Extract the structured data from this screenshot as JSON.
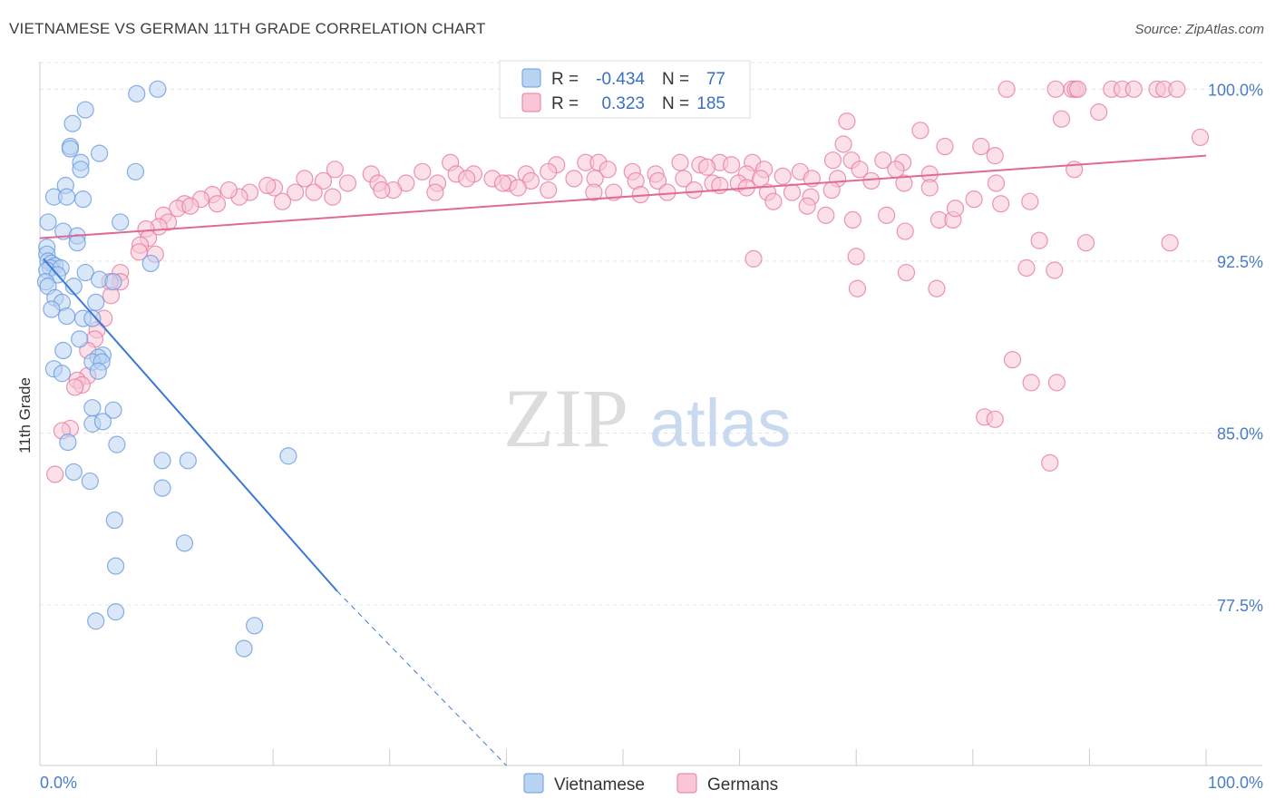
{
  "header": {
    "title": "VIETNAMESE VS GERMAN 11TH GRADE CORRELATION CHART",
    "source": "Source: ZipAtlas.com"
  },
  "watermark": {
    "zip": "ZIP",
    "atlas": "atlas"
  },
  "legend_box": {
    "rows": [
      {
        "r_label": "R =",
        "r_value": "-0.434",
        "n_label": "N =",
        "n_value": "77",
        "color": "#a9c8f0"
      },
      {
        "r_label": "R =",
        "r_value": "0.323",
        "n_label": "N =",
        "n_value": "185",
        "color": "#f5b8cc"
      }
    ]
  },
  "chart_data": {
    "type": "scatter",
    "title": "VIETNAMESE VS GERMAN 11TH GRADE CORRELATION CHART",
    "xlabel": "",
    "ylabel": "11th Grade",
    "xlim": [
      0,
      100
    ],
    "ylim": [
      70.5,
      101.2
    ],
    "x_tick_labels": [
      "0.0%",
      "100.0%"
    ],
    "y_ticks": [
      77.5,
      85.0,
      92.5,
      100.0
    ],
    "y_tick_labels": [
      "77.5%",
      "85.0%",
      "92.5%",
      "100.0%"
    ],
    "grid": true,
    "legend_position": "bottom-center",
    "series": [
      {
        "name": "Vietnamese",
        "color": "#6a9be0",
        "fill": "#b9d3f3",
        "r": -0.434,
        "n": 77,
        "trend": {
          "x0": 0.3,
          "y0": 92.6,
          "x1": 25.5,
          "y1": 78.1,
          "dash_to_x": 40,
          "dash_to_y": 70.5
        },
        "points": [
          [
            10.1,
            100.0
          ],
          [
            8.3,
            99.8
          ],
          [
            3.9,
            99.1
          ],
          [
            2.8,
            98.5
          ],
          [
            2.6,
            97.5
          ],
          [
            2.6,
            97.4
          ],
          [
            5.1,
            97.2
          ],
          [
            3.5,
            96.8
          ],
          [
            3.5,
            96.5
          ],
          [
            8.2,
            96.4
          ],
          [
            2.2,
            95.8
          ],
          [
            1.2,
            95.3
          ],
          [
            2.3,
            95.3
          ],
          [
            3.7,
            95.2
          ],
          [
            0.7,
            94.2
          ],
          [
            6.9,
            94.2
          ],
          [
            2.0,
            93.8
          ],
          [
            3.2,
            93.6
          ],
          [
            3.2,
            93.3
          ],
          [
            0.6,
            93.1
          ],
          [
            0.6,
            92.8
          ],
          [
            0.7,
            92.5
          ],
          [
            1.0,
            92.4
          ],
          [
            1.3,
            92.3
          ],
          [
            0.9,
            92.2
          ],
          [
            9.5,
            92.4
          ],
          [
            0.6,
            92.1
          ],
          [
            1.8,
            92.2
          ],
          [
            1.5,
            91.9
          ],
          [
            3.9,
            92.0
          ],
          [
            0.5,
            91.6
          ],
          [
            0.7,
            91.4
          ],
          [
            2.9,
            91.4
          ],
          [
            5.1,
            91.7
          ],
          [
            6.3,
            91.6
          ],
          [
            1.3,
            90.9
          ],
          [
            1.9,
            90.7
          ],
          [
            4.8,
            90.7
          ],
          [
            1.0,
            90.4
          ],
          [
            2.3,
            90.1
          ],
          [
            3.7,
            90.0
          ],
          [
            4.5,
            90.0
          ],
          [
            3.4,
            89.1
          ],
          [
            2.0,
            88.6
          ],
          [
            5.4,
            88.4
          ],
          [
            5.0,
            88.3
          ],
          [
            4.5,
            88.1
          ],
          [
            5.3,
            88.1
          ],
          [
            1.2,
            87.8
          ],
          [
            1.9,
            87.6
          ],
          [
            5.0,
            87.7
          ],
          [
            4.5,
            86.1
          ],
          [
            6.3,
            86.0
          ],
          [
            4.5,
            85.4
          ],
          [
            5.4,
            85.5
          ],
          [
            2.4,
            84.6
          ],
          [
            6.6,
            84.5
          ],
          [
            10.5,
            83.8
          ],
          [
            12.7,
            83.8
          ],
          [
            21.3,
            84.0
          ],
          [
            2.9,
            83.3
          ],
          [
            4.3,
            82.9
          ],
          [
            10.5,
            82.6
          ],
          [
            6.4,
            81.2
          ],
          [
            12.4,
            80.2
          ],
          [
            6.5,
            79.2
          ],
          [
            6.5,
            77.2
          ],
          [
            4.8,
            76.8
          ],
          [
            18.4,
            76.6
          ],
          [
            17.5,
            75.6
          ]
        ]
      },
      {
        "name": "Germans",
        "color": "#e87aa0",
        "fill": "#f8c6d6",
        "r": 0.323,
        "n": 185,
        "trend": {
          "x0": 0,
          "y0": 93.5,
          "x1": 100,
          "y1": 97.1
        },
        "points": [
          [
            82.9,
            100.0
          ],
          [
            87.1,
            100.0
          ],
          [
            88.5,
            100.0
          ],
          [
            88.8,
            100.0
          ],
          [
            89.0,
            100.0
          ],
          [
            91.9,
            100.0
          ],
          [
            92.8,
            100.0
          ],
          [
            93.8,
            100.0
          ],
          [
            95.8,
            100.0
          ],
          [
            96.4,
            100.0
          ],
          [
            97.5,
            100.0
          ],
          [
            90.8,
            99.0
          ],
          [
            87.6,
            98.7
          ],
          [
            69.2,
            98.6
          ],
          [
            75.5,
            98.2
          ],
          [
            99.5,
            97.9
          ],
          [
            68.9,
            97.6
          ],
          [
            77.6,
            97.5
          ],
          [
            80.7,
            97.5
          ],
          [
            81.9,
            97.1
          ],
          [
            68.0,
            96.9
          ],
          [
            69.6,
            96.9
          ],
          [
            72.3,
            96.9
          ],
          [
            74.0,
            96.8
          ],
          [
            58.3,
            96.8
          ],
          [
            61.1,
            96.8
          ],
          [
            44.3,
            96.7
          ],
          [
            46.8,
            96.8
          ],
          [
            47.9,
            96.8
          ],
          [
            54.9,
            96.8
          ],
          [
            56.6,
            96.7
          ],
          [
            59.3,
            96.7
          ],
          [
            35.2,
            96.8
          ],
          [
            25.3,
            96.5
          ],
          [
            28.4,
            96.3
          ],
          [
            32.8,
            96.4
          ],
          [
            35.7,
            96.3
          ],
          [
            37.2,
            96.3
          ],
          [
            41.7,
            96.3
          ],
          [
            43.6,
            96.4
          ],
          [
            48.7,
            96.5
          ],
          [
            50.8,
            96.4
          ],
          [
            52.8,
            96.3
          ],
          [
            57.2,
            96.6
          ],
          [
            60.6,
            96.3
          ],
          [
            62.1,
            96.5
          ],
          [
            65.2,
            96.4
          ],
          [
            70.3,
            96.5
          ],
          [
            73.4,
            96.5
          ],
          [
            76.3,
            96.3
          ],
          [
            88.7,
            96.5
          ],
          [
            22.7,
            96.1
          ],
          [
            24.3,
            96.0
          ],
          [
            26.4,
            95.9
          ],
          [
            29.0,
            95.9
          ],
          [
            31.4,
            95.9
          ],
          [
            34.1,
            95.9
          ],
          [
            36.6,
            96.1
          ],
          [
            38.8,
            96.1
          ],
          [
            40.2,
            95.9
          ],
          [
            42.1,
            96.0
          ],
          [
            45.8,
            96.1
          ],
          [
            47.6,
            96.1
          ],
          [
            51.1,
            96.0
          ],
          [
            53.0,
            96.0
          ],
          [
            55.2,
            96.1
          ],
          [
            57.7,
            95.9
          ],
          [
            59.9,
            95.9
          ],
          [
            61.8,
            96.1
          ],
          [
            63.7,
            96.2
          ],
          [
            66.2,
            96.1
          ],
          [
            68.4,
            96.1
          ],
          [
            71.3,
            96.0
          ],
          [
            74.1,
            95.9
          ],
          [
            76.3,
            95.7
          ],
          [
            20.1,
            95.7
          ],
          [
            21.9,
            95.5
          ],
          [
            23.5,
            95.5
          ],
          [
            19.5,
            95.8
          ],
          [
            30.3,
            95.6
          ],
          [
            33.9,
            95.5
          ],
          [
            39.7,
            95.9
          ],
          [
            41.0,
            95.7
          ],
          [
            43.6,
            95.6
          ],
          [
            47.5,
            95.5
          ],
          [
            49.2,
            95.5
          ],
          [
            51.5,
            95.4
          ],
          [
            53.8,
            95.5
          ],
          [
            56.1,
            95.6
          ],
          [
            58.3,
            95.8
          ],
          [
            60.6,
            95.7
          ],
          [
            62.4,
            95.5
          ],
          [
            64.5,
            95.5
          ],
          [
            66.1,
            95.3
          ],
          [
            67.9,
            95.6
          ],
          [
            18.0,
            95.5
          ],
          [
            17.1,
            95.3
          ],
          [
            16.2,
            95.6
          ],
          [
            14.8,
            95.4
          ],
          [
            13.8,
            95.2
          ],
          [
            15.2,
            95.0
          ],
          [
            12.4,
            95.0
          ],
          [
            11.8,
            94.8
          ],
          [
            12.9,
            94.9
          ],
          [
            10.6,
            94.5
          ],
          [
            11.0,
            94.2
          ],
          [
            10.2,
            94.0
          ],
          [
            9.1,
            93.9
          ],
          [
            9.3,
            93.5
          ],
          [
            8.6,
            93.2
          ],
          [
            9.9,
            92.8
          ],
          [
            8.5,
            92.9
          ],
          [
            6.9,
            92.0
          ],
          [
            6.9,
            91.6
          ],
          [
            6.0,
            91.6
          ],
          [
            6.1,
            91.0
          ],
          [
            5.5,
            90.0
          ],
          [
            4.9,
            89.5
          ],
          [
            4.7,
            89.1
          ],
          [
            4.1,
            88.6
          ],
          [
            4.1,
            87.5
          ],
          [
            3.2,
            87.3
          ],
          [
            3.6,
            87.1
          ],
          [
            3.0,
            87.0
          ],
          [
            2.6,
            85.2
          ],
          [
            1.9,
            85.1
          ],
          [
            1.3,
            83.2
          ],
          [
            20.8,
            95.1
          ],
          [
            25.1,
            95.3
          ],
          [
            29.3,
            95.6
          ],
          [
            62.9,
            95.1
          ],
          [
            65.8,
            94.9
          ],
          [
            67.4,
            94.5
          ],
          [
            69.7,
            94.3
          ],
          [
            72.6,
            94.5
          ],
          [
            74.2,
            93.8
          ],
          [
            77.1,
            94.3
          ],
          [
            78.3,
            94.3
          ],
          [
            78.5,
            94.8
          ],
          [
            80.1,
            95.2
          ],
          [
            82.4,
            95.0
          ],
          [
            84.9,
            95.1
          ],
          [
            82.0,
            95.9
          ],
          [
            85.7,
            93.4
          ],
          [
            89.7,
            93.3
          ],
          [
            96.9,
            93.3
          ],
          [
            70.0,
            92.7
          ],
          [
            61.2,
            92.6
          ],
          [
            74.3,
            92.0
          ],
          [
            84.6,
            92.2
          ],
          [
            87.0,
            92.1
          ],
          [
            70.1,
            91.3
          ],
          [
            76.9,
            91.3
          ],
          [
            83.4,
            88.2
          ],
          [
            85.0,
            87.2
          ],
          [
            87.2,
            87.2
          ],
          [
            81.0,
            85.7
          ],
          [
            81.9,
            85.6
          ],
          [
            86.6,
            83.7
          ]
        ]
      }
    ]
  }
}
